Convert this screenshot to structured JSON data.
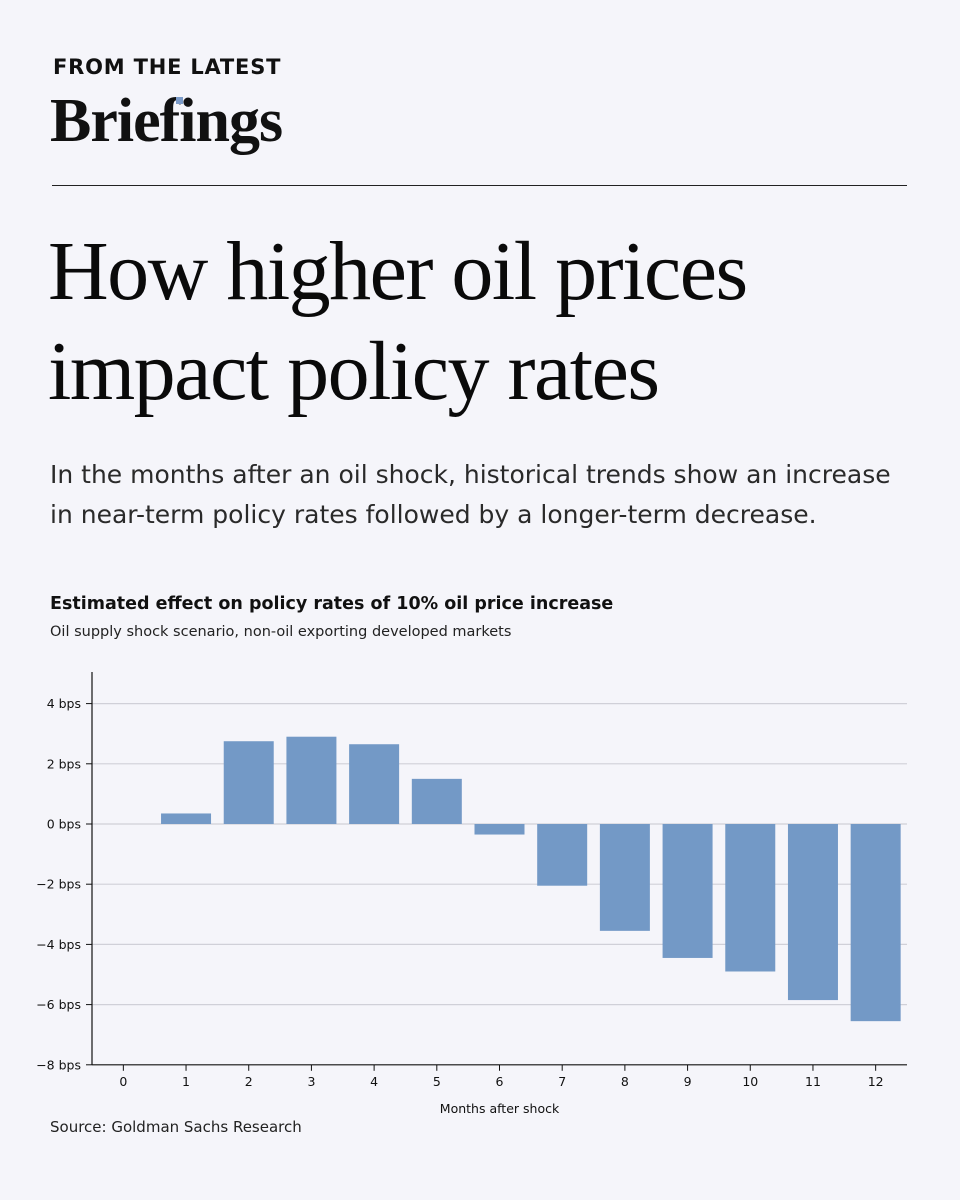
{
  "header": {
    "kicker": "FROM THE LATEST",
    "brand": "Briefings"
  },
  "headline": {
    "line1": "How higher oil prices",
    "line2": "impact policy rates"
  },
  "dek": "In the months after an oil shock, historical trends show an increase in near-term policy rates followed by a longer-term decrease.",
  "source": "Source: Goldman Sachs Research",
  "colors": {
    "bar": "#7399c6",
    "grid": "#d0d0d8",
    "axis": "#111111",
    "background": "#f5f5fa"
  },
  "chart_data": {
    "type": "bar",
    "title": "Estimated effect on policy rates of 10% oil price increase",
    "subtitle": "Oil supply shock scenario, non-oil exporting developed markets",
    "xlabel": "Months after shock",
    "ylabel": "",
    "unit_suffix": " bps",
    "categories": [
      "0",
      "1",
      "2",
      "3",
      "4",
      "5",
      "6",
      "7",
      "8",
      "9",
      "10",
      "11",
      "12"
    ],
    "values": [
      0,
      0.35,
      2.75,
      2.9,
      2.65,
      1.5,
      -0.35,
      -2.05,
      -3.55,
      -4.45,
      -4.9,
      -5.85,
      -6.55
    ],
    "yticks": [
      4,
      2,
      0,
      -2,
      -4,
      -6,
      -8
    ],
    "ytick_labels": [
      "4 bps",
      "2 bps",
      "0 bps",
      "−2 bps",
      "−4 bps",
      "−6 bps",
      "−8 bps"
    ],
    "ylim": [
      -8,
      5
    ],
    "grid": true,
    "legend": "none"
  }
}
